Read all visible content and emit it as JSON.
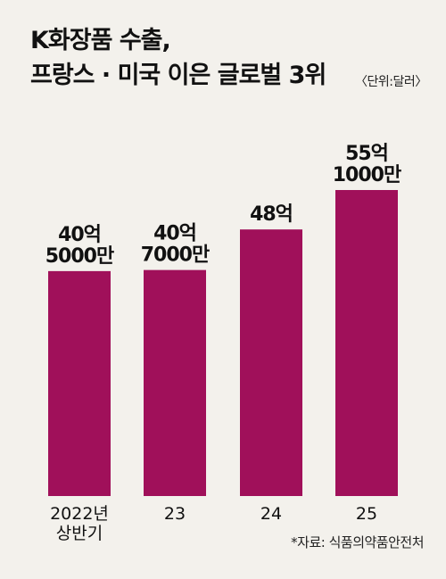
{
  "title_line1": "K화장품 수출,",
  "title_line2": "프랑스 · 미국 이은 글로벌 3위",
  "unit_note": "〈단위:달러〉",
  "source": "*자료: 식품의약품안전처",
  "colors": {
    "bar": "#a0105a",
    "background": "#f3f1ec"
  },
  "chart_data": {
    "type": "bar",
    "categories": [
      "2022년 상반기",
      "23",
      "24",
      "25"
    ],
    "category_lines": [
      [
        "2022년",
        "상반기"
      ],
      [
        "23"
      ],
      [
        "24"
      ],
      [
        "25"
      ]
    ],
    "values": [
      4050000000,
      4070000000,
      4800000000,
      5510000000
    ],
    "data_labels": [
      [
        "40억",
        "5000만"
      ],
      [
        "40억",
        "7000만"
      ],
      [
        "48억"
      ],
      [
        "55억",
        "1000만"
      ]
    ],
    "unit": "달러"
  }
}
